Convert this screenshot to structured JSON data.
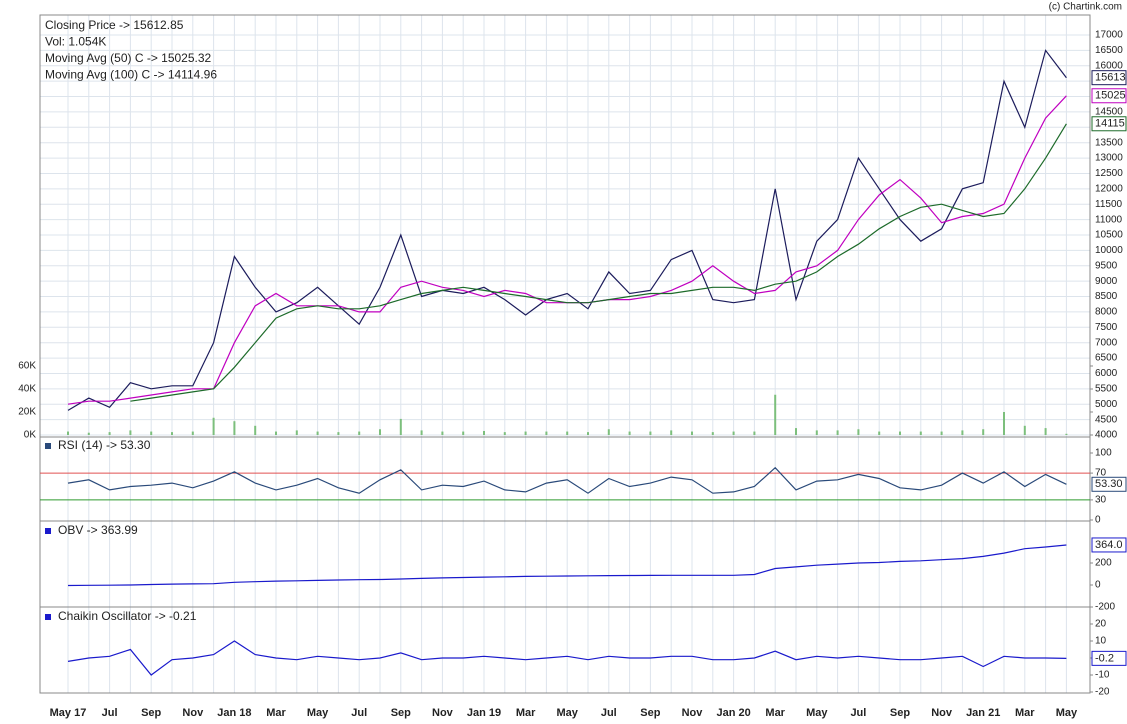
{
  "copyright": "(c) Chartink.com",
  "chart_data": [
    {
      "type": "line",
      "legend": [
        "Closing Price -> 15612.85",
        "Vol: 1.054K",
        "Moving Avg (50) C -> 15025.32",
        "Moving Avg (100) C -> 14114.96"
      ],
      "categories": [
        "May 17",
        null,
        "Jul",
        null,
        "Sep",
        null,
        "Nov",
        null,
        "Jan 18",
        null,
        "Mar",
        null,
        "May",
        null,
        "Jul",
        null,
        "Sep",
        null,
        "Nov",
        null,
        "Jan 19",
        null,
        "Mar",
        null,
        "May",
        null,
        "Jul",
        null,
        "Sep",
        null,
        "Nov",
        null,
        "Jan 20",
        null,
        "Mar",
        null,
        "May",
        null,
        "Jul",
        null,
        "Sep",
        null,
        "Nov",
        null,
        "Jan 21",
        null,
        "Mar",
        null,
        "May"
      ],
      "ylim": [
        4000,
        17000
      ],
      "yticks": [
        4000,
        4500,
        5000,
        5500,
        6000,
        6500,
        7000,
        7500,
        8000,
        8500,
        9000,
        9500,
        10000,
        10500,
        11000,
        11500,
        12000,
        12500,
        13000,
        13500,
        14000,
        14500,
        15000,
        15500,
        16000,
        16500,
        17000
      ],
      "grid": true,
      "series": [
        {
          "name": "Closing Price",
          "color": "#1c1c5c",
          "last_label": "15613",
          "values": [
            4800,
            5200,
            4900,
            5700,
            5500,
            5600,
            5600,
            7000,
            9800,
            8800,
            8000,
            8300,
            8800,
            8200,
            7600,
            8800,
            10500,
            8500,
            8700,
            8600,
            8800,
            8400,
            7900,
            8400,
            8600,
            8100,
            9300,
            8600,
            8700,
            9700,
            10000,
            8400,
            8300,
            8400,
            12000,
            8400,
            10300,
            11000,
            13000,
            12000,
            11000,
            10300,
            10700,
            12000,
            12200,
            15500,
            14000,
            16500,
            15612.85
          ]
        },
        {
          "name": "Moving Avg (50)",
          "color": "#c000c0",
          "last_label": "15025",
          "values": [
            5000,
            5100,
            5100,
            5200,
            5300,
            5400,
            5500,
            5500,
            7000,
            8200,
            8600,
            8200,
            8200,
            8200,
            8000,
            8000,
            8800,
            9000,
            8800,
            8700,
            8500,
            8700,
            8600,
            8300,
            8300,
            8300,
            8400,
            8400,
            8500,
            8700,
            9000,
            9500,
            9000,
            8600,
            8700,
            9300,
            9500,
            10000,
            11000,
            11800,
            12300,
            11700,
            10900,
            11100,
            11200,
            11500,
            13000,
            14300,
            15025.32
          ]
        },
        {
          "name": "Moving Avg (100)",
          "color": "#1d6b2a",
          "last_label": "14115",
          "values": [
            null,
            null,
            null,
            5100,
            5200,
            5300,
            5400,
            5500,
            6200,
            7000,
            7800,
            8100,
            8200,
            8100,
            8100,
            8200,
            8400,
            8600,
            8700,
            8800,
            8700,
            8600,
            8500,
            8400,
            8300,
            8300,
            8400,
            8500,
            8600,
            8600,
            8700,
            8800,
            8800,
            8700,
            8900,
            9000,
            9300,
            9800,
            10200,
            10700,
            11100,
            11400,
            11500,
            11300,
            11100,
            11200,
            12000,
            13000,
            14114.96
          ]
        }
      ]
    },
    {
      "type": "bar",
      "color": "#7cbf7c",
      "ylim": [
        0,
        60000
      ],
      "yticks": [
        {
          "value": 0,
          "label": "0K"
        },
        {
          "value": 20000,
          "label": "20K"
        },
        {
          "value": 40000,
          "label": "40K"
        },
        {
          "value": 60000,
          "label": "60K"
        }
      ],
      "values": [
        3000,
        2000,
        2500,
        4000,
        3000,
        2500,
        3000,
        15000,
        12000,
        8000,
        3000,
        4000,
        3000,
        2500,
        3000,
        5000,
        14000,
        4000,
        3000,
        3000,
        3500,
        2500,
        3000,
        3000,
        3000,
        2500,
        5000,
        3000,
        3000,
        4000,
        3000,
        2500,
        3000,
        3000,
        35000,
        6000,
        4000,
        4000,
        5000,
        3000,
        3000,
        3000,
        3000,
        4000,
        5000,
        20000,
        8000,
        6000,
        1054
      ]
    },
    {
      "type": "line",
      "title": "RSI (14) -> 53.30",
      "color": "#2a4a7a",
      "last_label": "53.30",
      "ylim": [
        0,
        100
      ],
      "yticks": [
        0,
        30,
        70,
        100
      ],
      "levels": [
        {
          "value": 70,
          "color": "#e05050"
        },
        {
          "value": 30,
          "color": "#2e9a2e"
        }
      ],
      "values": [
        55,
        60,
        45,
        50,
        52,
        55,
        48,
        58,
        72,
        55,
        45,
        52,
        62,
        48,
        40,
        60,
        75,
        45,
        52,
        50,
        58,
        45,
        42,
        55,
        60,
        40,
        62,
        50,
        55,
        64,
        60,
        40,
        42,
        50,
        78,
        45,
        58,
        60,
        68,
        62,
        48,
        45,
        52,
        70,
        55,
        72,
        50,
        68,
        53.3
      ]
    },
    {
      "type": "line",
      "title": "OBV -> 363.99",
      "color": "#1a1acc",
      "last_label": "364.0",
      "ylim": [
        -200,
        400
      ],
      "yticks": [
        -200,
        0,
        200
      ],
      "values": [
        -5,
        -3,
        -2,
        0,
        5,
        8,
        10,
        12,
        25,
        30,
        35,
        38,
        42,
        45,
        48,
        50,
        55,
        60,
        65,
        68,
        72,
        75,
        78,
        80,
        82,
        84,
        85,
        86,
        87,
        88,
        88,
        88,
        88,
        95,
        150,
        165,
        180,
        190,
        200,
        205,
        215,
        220,
        230,
        240,
        260,
        290,
        330,
        345,
        363.99
      ]
    },
    {
      "type": "line",
      "title": "Chaikin Oscillator -> -0.21",
      "color": "#1a1acc",
      "last_label": "-0.2",
      "ylim": [
        -20,
        20
      ],
      "yticks": [
        -20,
        -10,
        0,
        10,
        20
      ],
      "values": [
        -2,
        0,
        1,
        5,
        -10,
        -1,
        0,
        2,
        10,
        2,
        0,
        -1,
        1,
        0,
        -1,
        0,
        3,
        -1,
        0,
        0,
        1,
        0,
        -1,
        0,
        1,
        -1,
        1,
        0,
        0,
        1,
        1,
        -1,
        -1,
        0,
        4,
        -1,
        1,
        0,
        1,
        0,
        -1,
        -1,
        0,
        1,
        -5,
        1,
        0,
        0,
        -0.21
      ]
    }
  ]
}
